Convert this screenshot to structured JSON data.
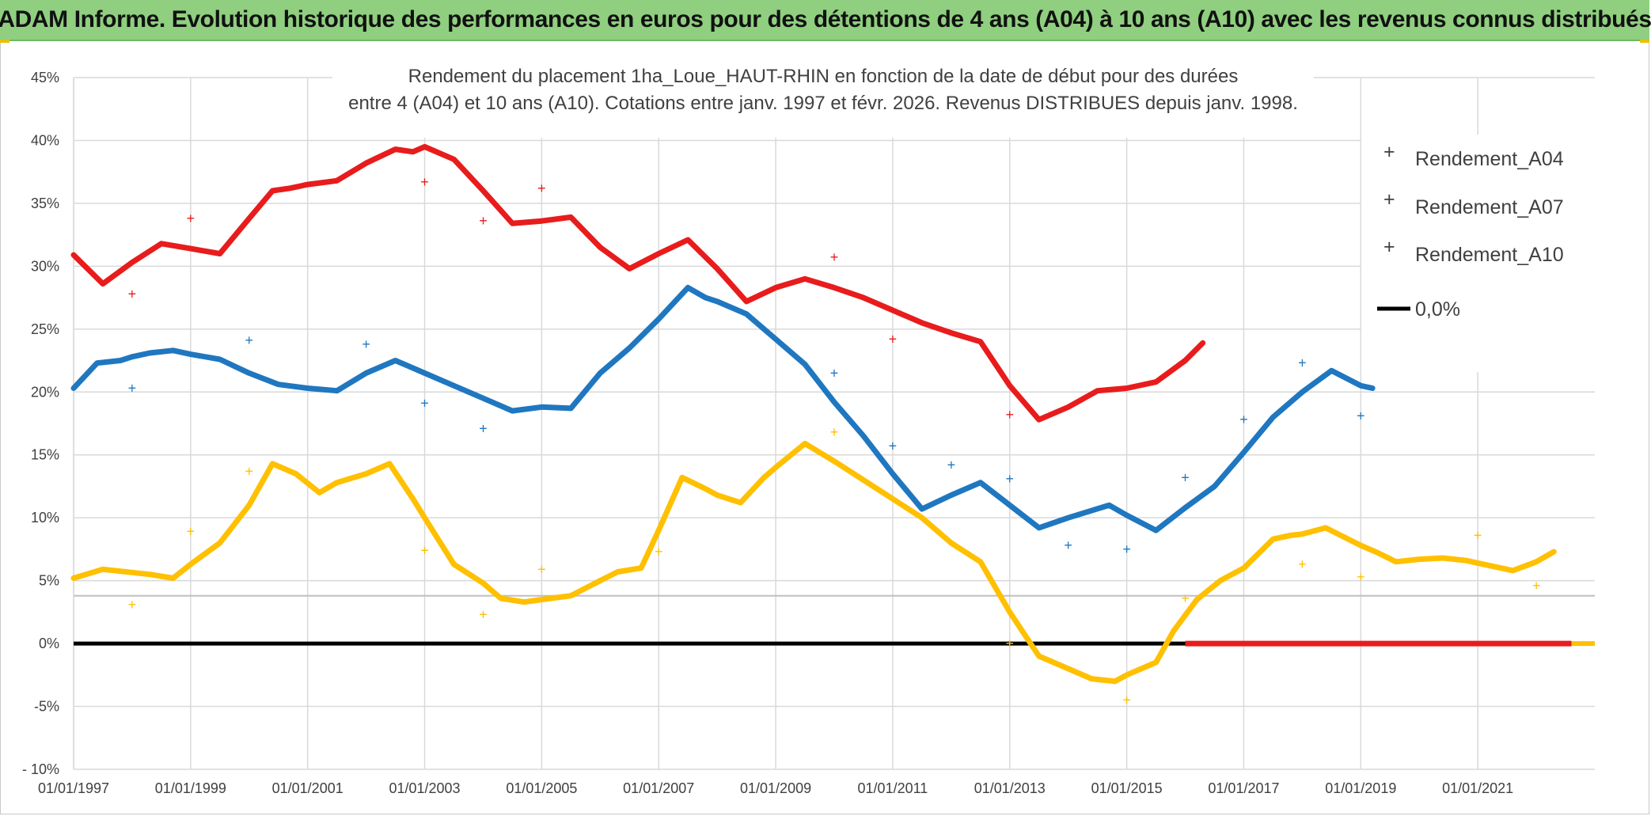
{
  "banner": "ADAM Informe. Evolution historique des performances en euros pour des détentions de 4 ans (A04) à 10 ans (A10) avec les revenus connus distribués",
  "chart_data": {
    "type": "scatter",
    "title_lines": [
      "Rendement du placement 1ha_Loue_HAUT-RHIN en fonction de la date de début pour des durées",
      "entre 4 (A04) et 10 ans (A10). Cotations entre janv. 1997 et févr. 2026. Revenus DISTRIBUES depuis janv. 1998."
    ],
    "x_range": [
      1997.0,
      2023.0
    ],
    "y_range": [
      -10,
      45
    ],
    "y_ticks": [
      45,
      40,
      35,
      30,
      25,
      20,
      15,
      10,
      5,
      0,
      -5,
      -10
    ],
    "y_tick_labels": [
      "45%",
      "40%",
      "35%",
      "30%",
      "25%",
      "20%",
      "15%",
      "10%",
      "5%",
      "0%",
      "-5%",
      "- 10%"
    ],
    "x_ticks": [
      1997,
      1999,
      2001,
      2003,
      2005,
      2007,
      2009,
      2011,
      2013,
      2015,
      2017,
      2019,
      2021
    ],
    "x_tick_labels": [
      "01/01/1997",
      "01/01/1999",
      "01/01/2001",
      "01/01/2003",
      "01/01/2005",
      "01/01/2007",
      "01/01/2009",
      "01/01/2011",
      "01/01/2013",
      "01/01/2015",
      "01/01/2017",
      "01/01/2019",
      "01/01/2021"
    ],
    "extra_hline": 3.8,
    "series": [
      {
        "name": "Rendement_A04",
        "color": "#FFC000",
        "x": [
          1997.0,
          1997.5,
          1998.3,
          1998.7,
          1999.0,
          1999.5,
          2000.0,
          2000.4,
          2000.8,
          2001.2,
          2001.5,
          2002.0,
          2002.4,
          2002.8,
          2003.0,
          2003.5,
          2004.0,
          2004.3,
          2004.7,
          2005.0,
          2005.5,
          2006.0,
          2006.3,
          2006.7,
          2007.0,
          2007.4,
          2007.8,
          2008.0,
          2008.4,
          2008.8,
          2009.0,
          2009.5,
          2010.0,
          2010.5,
          2011.0,
          2011.5,
          2012.0,
          2012.5,
          2013.0,
          2013.5,
          2014.0,
          2014.4,
          2014.8,
          2015.0,
          2015.5,
          2015.8,
          2016.2,
          2016.6,
          2017.0,
          2017.5,
          2017.8,
          2018.0,
          2018.4,
          2018.7,
          2019.0,
          2019.3,
          2019.6,
          2020.0,
          2020.4,
          2020.8,
          2021.0,
          2021.3,
          2021.6,
          2022.0,
          2022.3
        ],
        "y": [
          5.2,
          5.9,
          5.5,
          5.2,
          6.3,
          8.0,
          11.0,
          14.3,
          13.5,
          12.0,
          12.8,
          13.5,
          14.3,
          11.5,
          10.0,
          6.3,
          4.8,
          3.6,
          3.3,
          3.5,
          3.8,
          5.0,
          5.7,
          6.0,
          9.0,
          13.2,
          12.3,
          11.8,
          11.2,
          13.2,
          14.0,
          15.9,
          14.5,
          13.0,
          11.5,
          10.0,
          8.0,
          6.5,
          2.5,
          -1.0,
          -2.0,
          -2.8,
          -3.0,
          -2.5,
          -1.5,
          1.0,
          3.5,
          5.0,
          6.0,
          8.3,
          8.6,
          8.7,
          9.2,
          8.5,
          7.8,
          7.2,
          6.5,
          6.7,
          6.8,
          6.6,
          6.4,
          6.1,
          5.8,
          6.5,
          7.3
        ],
        "markers": [
          [
            1998.0,
            3.1
          ],
          [
            1999.0,
            8.9
          ],
          [
            2000.0,
            13.7
          ],
          [
            2003.0,
            7.4
          ],
          [
            2004.0,
            2.3
          ],
          [
            2005.0,
            5.9
          ],
          [
            2007.0,
            7.3
          ],
          [
            2010.0,
            16.8
          ],
          [
            2013.0,
            0.0
          ],
          [
            2015.0,
            -4.5
          ],
          [
            2016.0,
            3.6
          ],
          [
            2018.0,
            6.3
          ],
          [
            2019.0,
            5.3
          ],
          [
            2021.0,
            8.6
          ],
          [
            2022.0,
            4.6
          ]
        ]
      },
      {
        "name": "Rendement_A07",
        "color": "#1F77C0",
        "x": [
          1997.0,
          1997.4,
          1997.8,
          1998.0,
          1998.3,
          1998.7,
          1999.0,
          1999.5,
          2000.0,
          2000.5,
          2001.0,
          2001.5,
          2002.0,
          2002.5,
          2003.0,
          2003.5,
          2004.0,
          2004.5,
          2005.0,
          2005.5,
          2006.0,
          2006.5,
          2007.0,
          2007.5,
          2007.8,
          2008.0,
          2008.5,
          2009.0,
          2009.5,
          2010.0,
          2010.5,
          2011.0,
          2011.5,
          2012.0,
          2012.5,
          2013.0,
          2013.5,
          2014.0,
          2014.7,
          2015.0,
          2015.5,
          2016.0,
          2016.5,
          2017.0,
          2017.5,
          2018.0,
          2018.5,
          2019.0,
          2019.2
        ],
        "y": [
          20.3,
          22.3,
          22.5,
          22.8,
          23.1,
          23.3,
          23.0,
          22.6,
          21.5,
          20.6,
          20.3,
          20.1,
          21.5,
          22.5,
          21.5,
          20.5,
          19.5,
          18.5,
          18.8,
          18.7,
          21.5,
          23.5,
          25.8,
          28.3,
          27.5,
          27.2,
          26.2,
          24.2,
          22.2,
          19.2,
          16.5,
          13.5,
          10.7,
          11.8,
          12.8,
          11.0,
          9.2,
          10.0,
          11.0,
          10.2,
          9.0,
          10.8,
          12.5,
          15.2,
          18.0,
          20.0,
          21.7,
          20.5,
          20.3
        ],
        "markers": [
          [
            1998.0,
            20.3
          ],
          [
            2000.0,
            24.1
          ],
          [
            2002.0,
            23.8
          ],
          [
            2003.0,
            19.1
          ],
          [
            2004.0,
            17.1
          ],
          [
            2010.0,
            21.5
          ],
          [
            2011.0,
            15.7
          ],
          [
            2012.0,
            14.2
          ],
          [
            2013.0,
            13.1
          ],
          [
            2014.0,
            7.8
          ],
          [
            2015.0,
            7.5
          ],
          [
            2016.0,
            13.2
          ],
          [
            2017.0,
            17.8
          ],
          [
            2018.0,
            22.3
          ],
          [
            2019.0,
            18.1
          ]
        ]
      },
      {
        "name": "Rendement_A10",
        "color": "#E81C1C",
        "x": [
          1997.0,
          1997.5,
          1998.0,
          1998.5,
          1999.0,
          1999.5,
          2000.0,
          2000.4,
          2000.7,
          2001.0,
          2001.5,
          2002.0,
          2002.5,
          2002.8,
          2003.0,
          2003.5,
          2004.0,
          2004.5,
          2005.0,
          2005.5,
          2006.0,
          2006.5,
          2007.0,
          2007.5,
          2008.0,
          2008.5,
          2009.0,
          2009.5,
          2010.0,
          2010.5,
          2011.0,
          2011.5,
          2012.0,
          2012.5,
          2013.0,
          2013.5,
          2014.0,
          2014.5,
          2015.0,
          2015.5,
          2016.0,
          2016.3
        ],
        "y": [
          30.9,
          28.6,
          30.3,
          31.8,
          31.4,
          31.0,
          33.8,
          36.0,
          36.2,
          36.5,
          36.8,
          38.2,
          39.3,
          39.1,
          39.5,
          38.5,
          36.0,
          33.4,
          33.6,
          33.9,
          31.5,
          29.8,
          31.0,
          32.1,
          29.8,
          27.2,
          28.3,
          29.0,
          28.3,
          27.5,
          26.5,
          25.5,
          24.7,
          24.0,
          20.5,
          17.8,
          18.8,
          20.1,
          20.3,
          20.8,
          22.5,
          23.9
        ],
        "markers": [
          [
            1998.0,
            27.8
          ],
          [
            1999.0,
            33.8
          ],
          [
            2003.0,
            36.7
          ],
          [
            2004.0,
            33.6
          ],
          [
            2005.0,
            36.2
          ],
          [
            2010.0,
            30.7
          ],
          [
            2011.0,
            24.2
          ],
          [
            2013.0,
            18.2
          ]
        ],
        "zero_segment_x": [
          2016.0,
          2022.6
        ]
      },
      {
        "name": "0,0%",
        "color": "#000000",
        "x": [
          1997.0,
          2023.0
        ],
        "y": [
          0,
          0
        ]
      }
    ]
  }
}
